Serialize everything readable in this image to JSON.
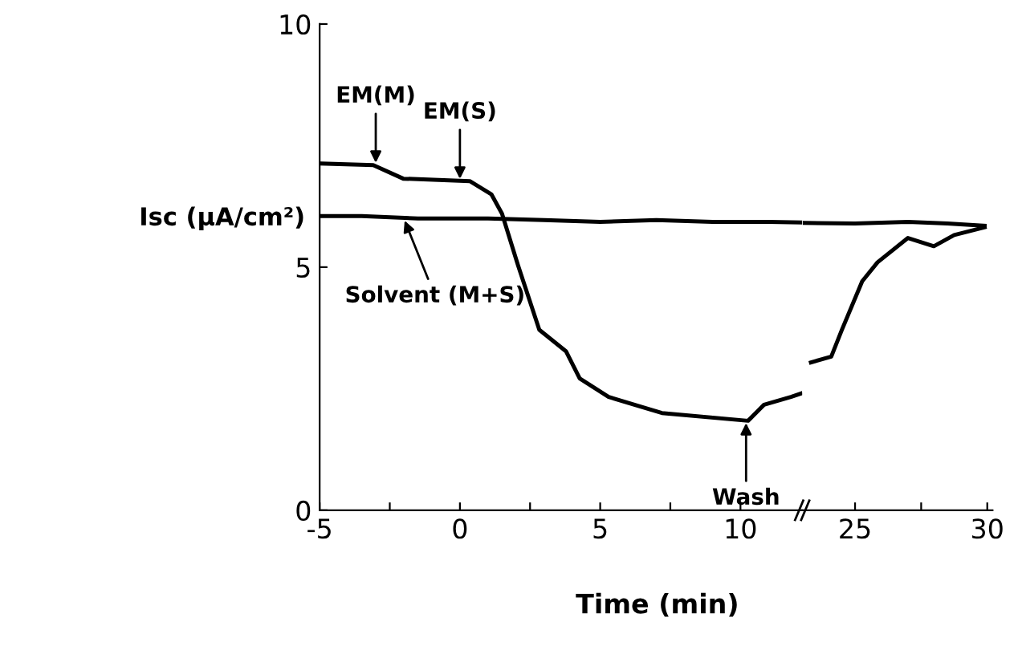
{
  "chart_data": [
    {
      "type": "line",
      "xlabel": "Time (min)",
      "ylabel": "Isc (μA/cm²)",
      "xlim": [
        -5,
        12.2
      ],
      "ylim": [
        0,
        10
      ],
      "xticks": [
        -5,
        {
          "value": -2.5,
          "label": null
        },
        0,
        {
          "value": 2.5,
          "label": null
        },
        5,
        {
          "value": 7.5,
          "label": null
        },
        10
      ],
      "yticks": [
        0,
        5,
        10
      ],
      "grid": false,
      "marker": "none",
      "line_style": "solid",
      "series": [
        {
          "color": "#000000",
          "x": [
            -4.95,
            -3.09,
            -2.02,
            0.35,
            1.12,
            1.5,
            2.07,
            2.83,
            3.78,
            4.27,
            5.3,
            7.2,
            10.27,
            10.84,
            11.8,
            12.15
          ],
          "values": [
            7.13,
            7.1,
            6.82,
            6.77,
            6.5,
            6.1,
            5.04,
            3.71,
            3.27,
            2.71,
            2.33,
            2.0,
            1.84,
            2.17,
            2.33,
            2.4
          ]
        },
        {
          "color": "#000000",
          "x": [
            -5.0,
            -3.5,
            -1.5,
            1.0,
            3.0,
            5.0,
            7.0,
            9.0,
            11.0,
            12.15
          ],
          "values": [
            6.05,
            6.05,
            6.0,
            6.0,
            5.97,
            5.93,
            5.97,
            5.93,
            5.93,
            5.92
          ]
        }
      ],
      "annotations": [
        {
          "text": "EM(M)",
          "x": -3,
          "y": 7.1
        },
        {
          "text": "EM(S)",
          "x": 0,
          "y": 6.77
        },
        {
          "text": "Solvent (M+S)",
          "x": -2,
          "y": 6.0
        },
        {
          "text": "Wash",
          "x": 10.2,
          "y": 1.84
        }
      ]
    },
    {
      "type": "line",
      "xlim": [
        23,
        30.2
      ],
      "ylim": [
        0,
        10
      ],
      "xticks": [
        25,
        {
          "value": 27.5,
          "label": null
        },
        30
      ],
      "tick_labels": "x",
      "grid": false,
      "marker": "none",
      "line_style": "solid",
      "series": [
        {
          "color": "#000000",
          "x": [
            23.33,
            24.1,
            24.5,
            25.27,
            25.85,
            27.0,
            27.98,
            28.75,
            29.9
          ],
          "values": [
            3.04,
            3.16,
            3.71,
            4.71,
            5.1,
            5.6,
            5.43,
            5.66,
            5.82
          ]
        },
        {
          "color": "#000000",
          "x": [
            23.1,
            25.0,
            27.0,
            28.5,
            29.9
          ],
          "values": [
            5.91,
            5.9,
            5.93,
            5.9,
            5.85
          ]
        }
      ]
    }
  ]
}
